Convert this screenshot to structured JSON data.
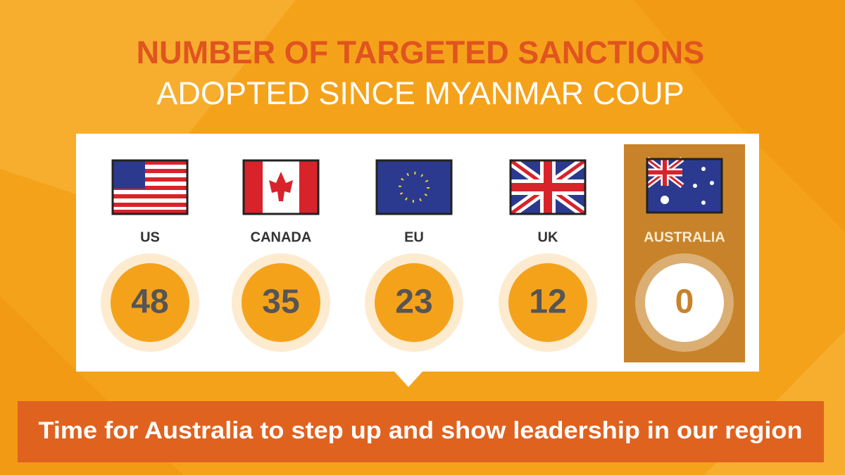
{
  "header": {
    "title": "NUMBER OF TARGETED SANCTIONS",
    "subtitle": "ADOPTED SINCE MYANMAR COUP"
  },
  "countries": [
    {
      "name": "US",
      "value": "48"
    },
    {
      "name": "CANADA",
      "value": "35"
    },
    {
      "name": "EU",
      "value": "23"
    },
    {
      "name": "UK",
      "value": "12"
    },
    {
      "name": "AUSTRALIA",
      "value": "0"
    }
  ],
  "banner": "Time for Australia to step up and show leadership in our region"
}
